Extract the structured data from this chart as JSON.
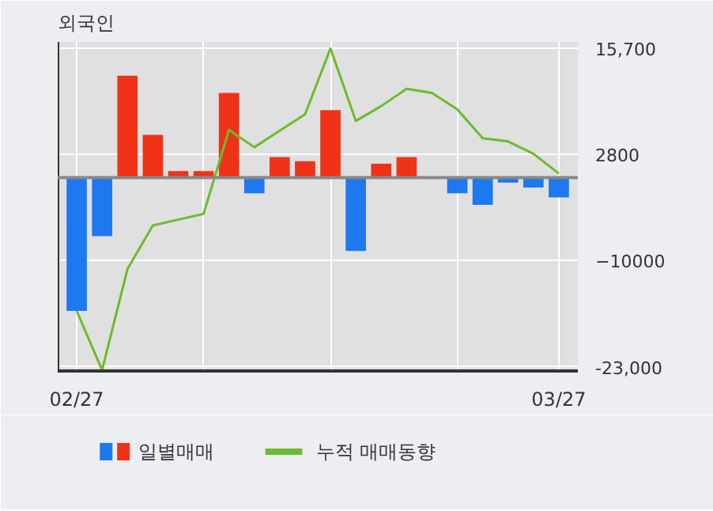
{
  "chart_data": {
    "type": "bar",
    "title": "외국인",
    "categories": [
      "02/27",
      null,
      null,
      null,
      null,
      null,
      null,
      null,
      null,
      null,
      null,
      null,
      null,
      null,
      null,
      null,
      null,
      null,
      null,
      "03/27"
    ],
    "series": [
      {
        "name": "일별매매",
        "values": [
          -16200,
          -7100,
          12400,
          5200,
          800,
          800,
          10300,
          -1900,
          2500,
          2000,
          8200,
          -8900,
          1700,
          2500,
          0,
          -1900,
          -3300,
          -600,
          -1200,
          -2400
        ],
        "colors": [
          "#1e78f0",
          "#1e78f0",
          "#f03219",
          "#f03219",
          "#f03219",
          "#f03219",
          "#f03219",
          "#1e78f0",
          "#f03219",
          "#f03219",
          "#f03219",
          "#1e78f0",
          "#f03219",
          "#f03219",
          "#f03219",
          "#1e78f0",
          "#1e78f0",
          "#1e78f0",
          "#1e78f0",
          "#1e78f0"
        ]
      },
      {
        "name": "누적 매매동향",
        "type": "line",
        "color": "#6cbb2e",
        "values": [
          -16200,
          -23400,
          -11100,
          -5800,
          -5100,
          -4400,
          5800,
          3700,
          5700,
          7700,
          15700,
          6900,
          8700,
          10800,
          10300,
          8300,
          4800,
          4400,
          2900,
          500
        ]
      }
    ],
    "ylim": [
      -23500,
      16500
    ],
    "yticks": [
      {
        "value": 15700,
        "label": "15,700"
      },
      2800,
      -10000,
      {
        "value": -23000,
        "label": "-23,000"
      }
    ],
    "grid": true,
    "legend": "bottom"
  }
}
